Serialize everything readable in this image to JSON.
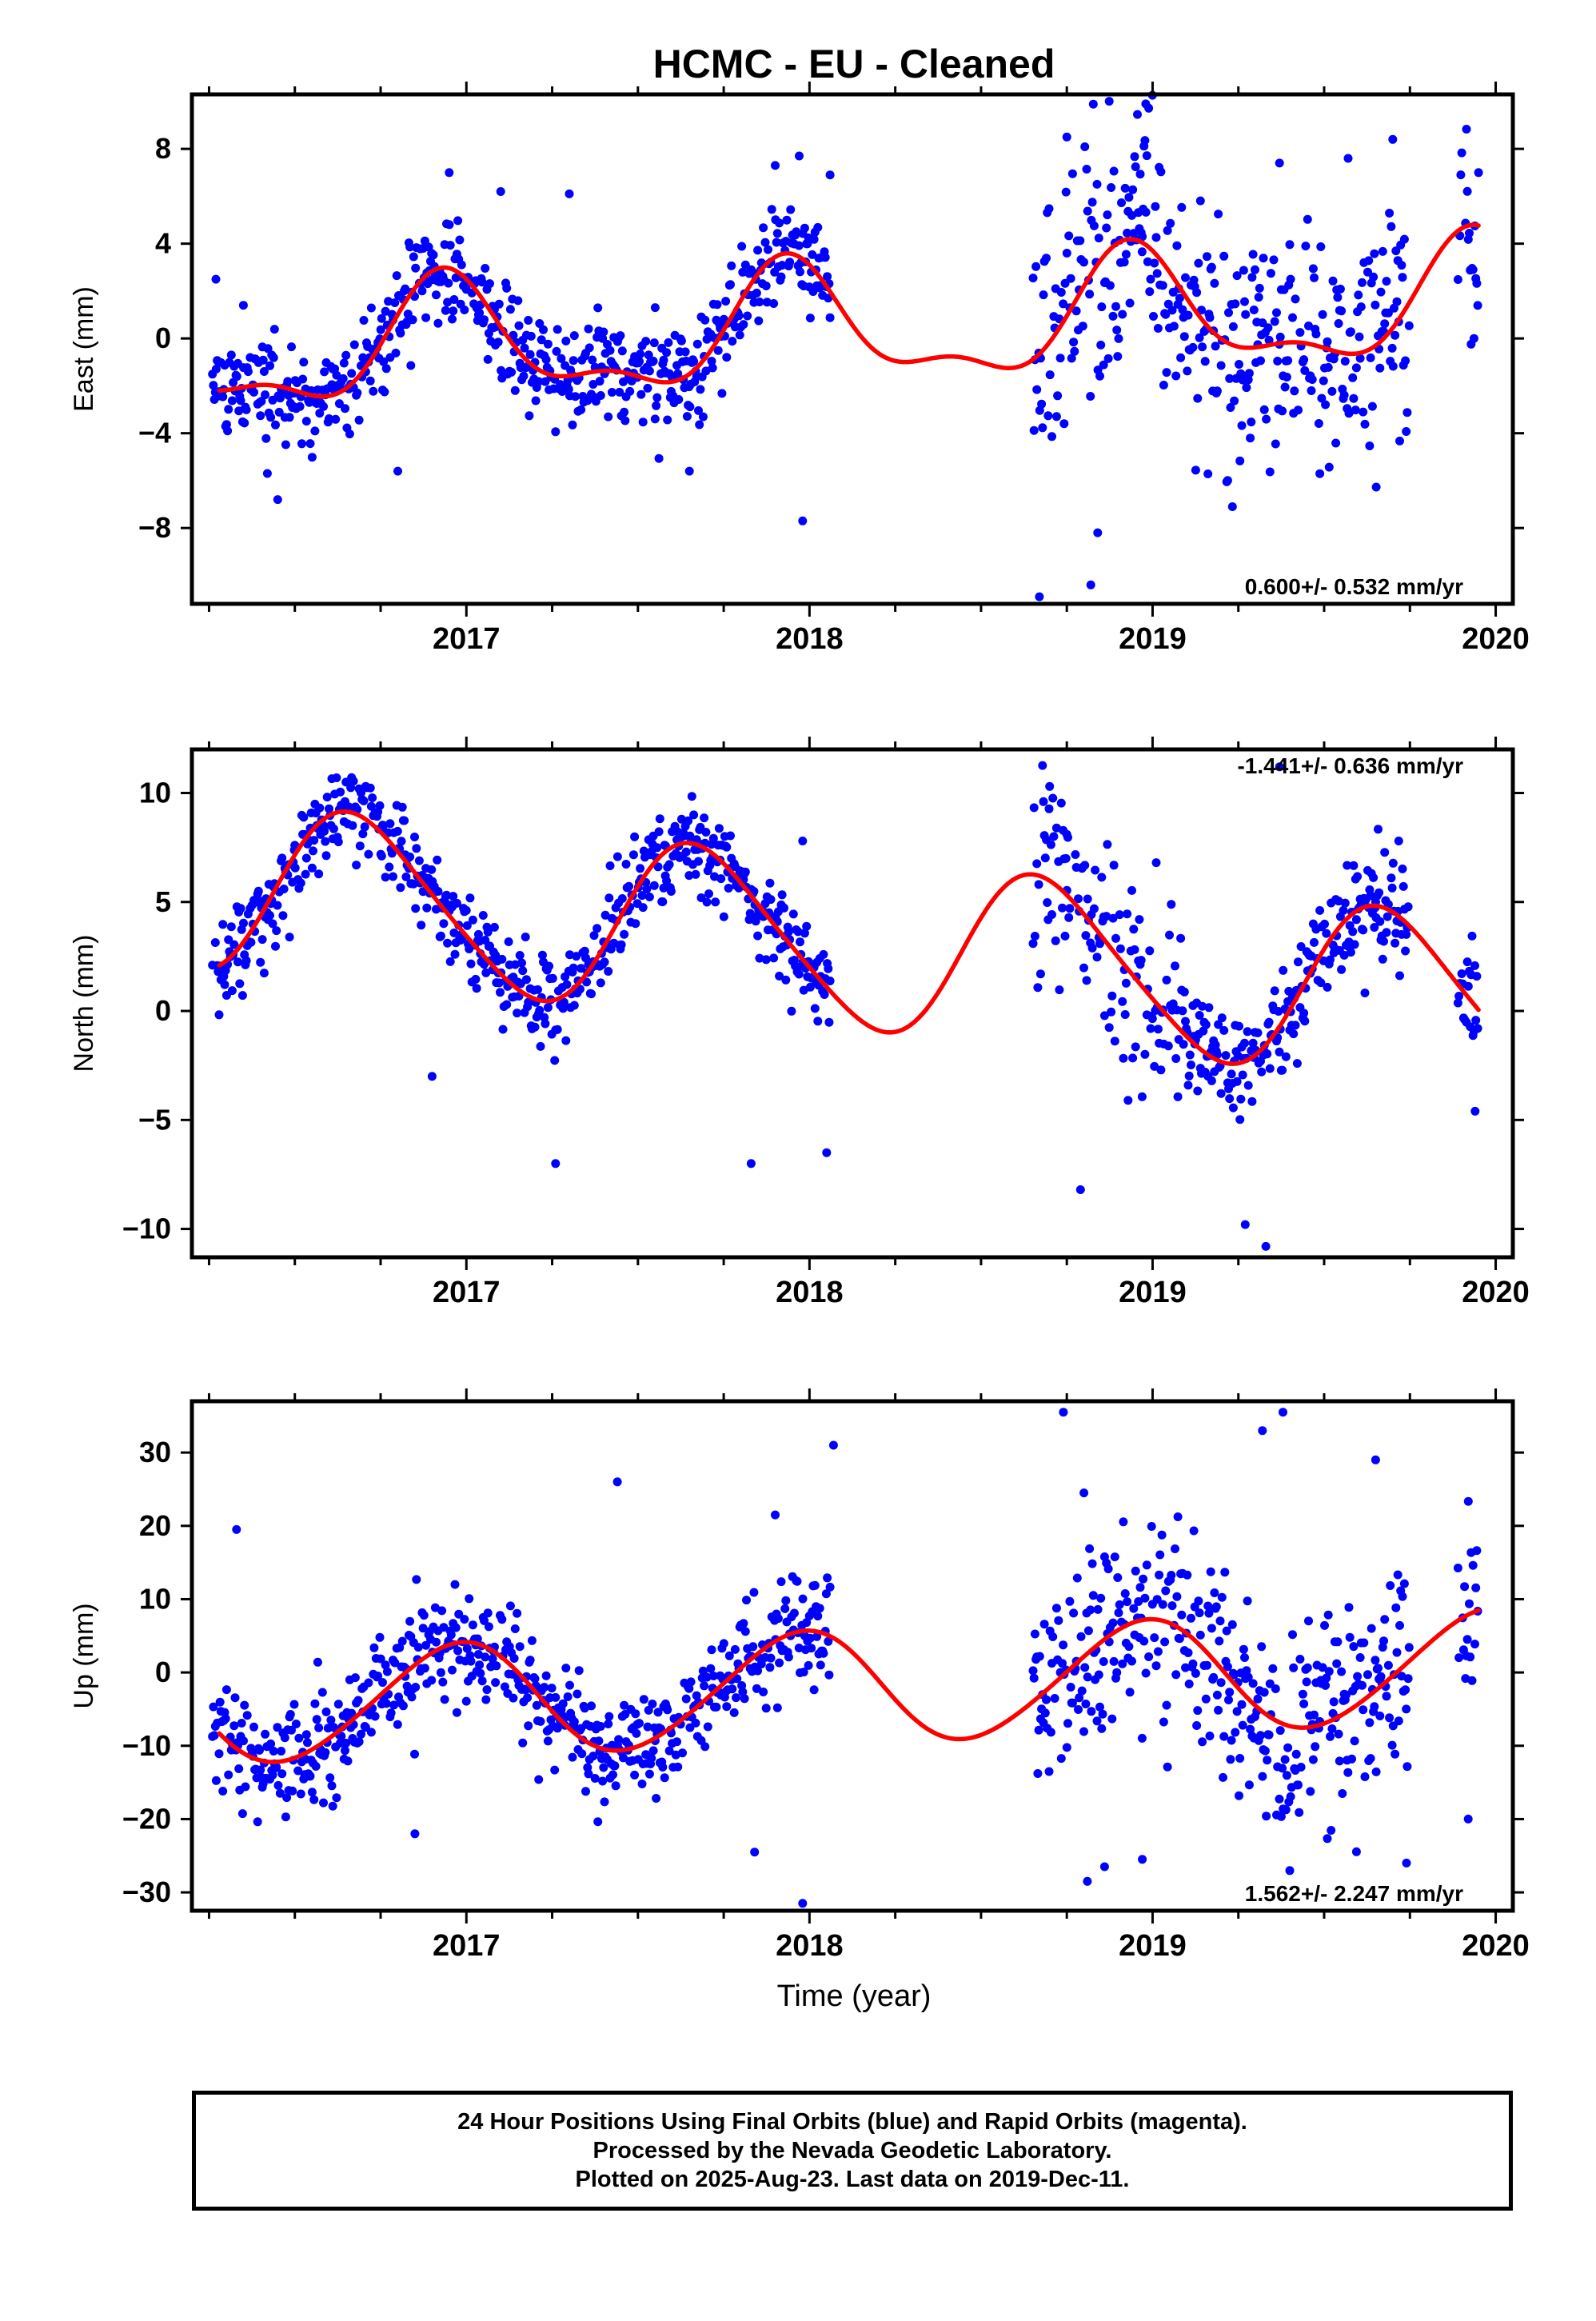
{
  "chart_data": {
    "title": "HCMC  - EU - Cleaned",
    "xlabel": "Time (year)",
    "x_ticks": [
      "2017",
      "2018",
      "2019",
      "2020"
    ],
    "xlim": [
      2016.2,
      2020.05
    ],
    "point_color": "#0000ff",
    "model_color": "#ff0000",
    "panels": [
      {
        "type": "scatter",
        "name": "east",
        "ylabel": "East (mm)",
        "ylim": [
          -11.2,
          10.3
        ],
        "y_ticks": [
          8,
          4,
          0,
          -4,
          -8
        ],
        "y_tick_labels": [
          "8",
          "4",
          "0",
          "−4",
          "−8"
        ],
        "rate_label": "0.600+/- 0.532 mm/yr",
        "rate_position": "bottom-right",
        "model": {
          "trend": 0.6,
          "offset": 0.3,
          "a1": -0.8,
          "b1": 2.2,
          "a2": -0.8,
          "b2": 0.6
        },
        "samples": [
          {
            "x": 2016.27,
            "y": 2.5
          },
          {
            "x": 2016.35,
            "y": 1.4
          },
          {
            "x": 2016.42,
            "y": -5.7
          },
          {
            "x": 2016.45,
            "y": -6.8
          },
          {
            "x": 2016.8,
            "y": -5.6
          },
          {
            "x": 2016.95,
            "y": 7.0
          },
          {
            "x": 2017.1,
            "y": 6.2
          },
          {
            "x": 2017.3,
            "y": 6.1
          },
          {
            "x": 2017.55,
            "y": -3.4
          },
          {
            "x": 2017.65,
            "y": -5.6
          },
          {
            "x": 2017.9,
            "y": 7.3
          },
          {
            "x": 2017.97,
            "y": 7.7
          },
          {
            "x": 2017.98,
            "y": -7.7
          },
          {
            "x": 2018.06,
            "y": 6.9
          },
          {
            "x": 2018.67,
            "y": -10.9
          },
          {
            "x": 2018.75,
            "y": 8.5
          },
          {
            "x": 2018.82,
            "y": -10.4
          },
          {
            "x": 2018.84,
            "y": -8.2
          },
          {
            "x": 2018.97,
            "y": 4.3
          },
          {
            "x": 2018.98,
            "y": 9.9
          },
          {
            "x": 2019.37,
            "y": 7.4
          },
          {
            "x": 2019.57,
            "y": 7.6
          },
          {
            "x": 2019.7,
            "y": 8.4
          },
          {
            "x": 2019.95,
            "y": 7.0
          }
        ]
      },
      {
        "type": "scatter",
        "name": "north",
        "ylabel": "North (mm)",
        "ylim": [
          -11.3,
          12.0
        ],
        "y_ticks": [
          10,
          5,
          0,
          -5,
          -10
        ],
        "y_tick_labels": [
          "10",
          "5",
          "0",
          "−5",
          "−10"
        ],
        "rate_label": "-1.441+/- 0.636 mm/yr",
        "rate_position": "top-right",
        "model": {
          "trend": -1.441,
          "offset": 3.2,
          "a1": -3.5,
          "b1": -1.5,
          "a2": 0.4,
          "b2": 0.3
        },
        "samples": [
          {
            "x": 2016.5,
            "y": 7.6
          },
          {
            "x": 2016.9,
            "y": -3.0
          },
          {
            "x": 2017.26,
            "y": -7.0
          },
          {
            "x": 2017.58,
            "y": 6.2
          },
          {
            "x": 2017.83,
            "y": -7.0
          },
          {
            "x": 2017.98,
            "y": 7.8
          },
          {
            "x": 2018.05,
            "y": -6.5
          },
          {
            "x": 2018.7,
            "y": 10.3
          },
          {
            "x": 2018.75,
            "y": 8.1
          },
          {
            "x": 2018.79,
            "y": -8.2
          },
          {
            "x": 2019.27,
            "y": -9.8
          },
          {
            "x": 2019.33,
            "y": -10.8
          },
          {
            "x": 2019.37,
            "y": 11.2
          },
          {
            "x": 2019.65,
            "y": 5.0
          },
          {
            "x": 2019.94,
            "y": -4.6
          }
        ]
      },
      {
        "type": "scatter",
        "name": "up",
        "ylabel": "Up (mm)",
        "ylim": [
          -32.5,
          37.0
        ],
        "y_ticks": [
          30,
          20,
          10,
          0,
          -10,
          -20,
          -30
        ],
        "y_tick_labels": [
          "30",
          "20",
          "10",
          "0",
          "−10",
          "−20",
          "−30"
        ],
        "rate_label": "1.562+/- 2.247 mm/yr",
        "rate_position": "bottom-right",
        "model": {
          "trend": 1.562,
          "offset": -2.2,
          "a1": -1.5,
          "b1": 7.5,
          "a2": 0.5,
          "b2": 0.4
        },
        "samples": [
          {
            "x": 2016.33,
            "y": 19.5
          },
          {
            "x": 2016.85,
            "y": -22.0
          },
          {
            "x": 2017.44,
            "y": 26.0
          },
          {
            "x": 2017.9,
            "y": 21.5
          },
          {
            "x": 2017.84,
            "y": -24.5
          },
          {
            "x": 2017.98,
            "y": -31.5
          },
          {
            "x": 2018.07,
            "y": 31.0
          },
          {
            "x": 2018.74,
            "y": 35.5
          },
          {
            "x": 2018.8,
            "y": 24.5
          },
          {
            "x": 2018.81,
            "y": -28.5
          },
          {
            "x": 2018.86,
            "y": -26.5
          },
          {
            "x": 2018.97,
            "y": -25.5
          },
          {
            "x": 2019.32,
            "y": 33.0
          },
          {
            "x": 2019.38,
            "y": 35.5
          },
          {
            "x": 2019.65,
            "y": 29.0
          },
          {
            "x": 2019.74,
            "y": -26.0
          },
          {
            "x": 2019.92,
            "y": -20.0
          }
        ]
      }
    ]
  },
  "caption": {
    "line1": "24 Hour Positions Using Final Orbits (blue) and Rapid Orbits (magenta).",
    "line2": "Processed by the Nevada Geodetic Laboratory.",
    "line3": "Plotted on 2025-Aug-23. Last data on 2019-Dec-11."
  }
}
